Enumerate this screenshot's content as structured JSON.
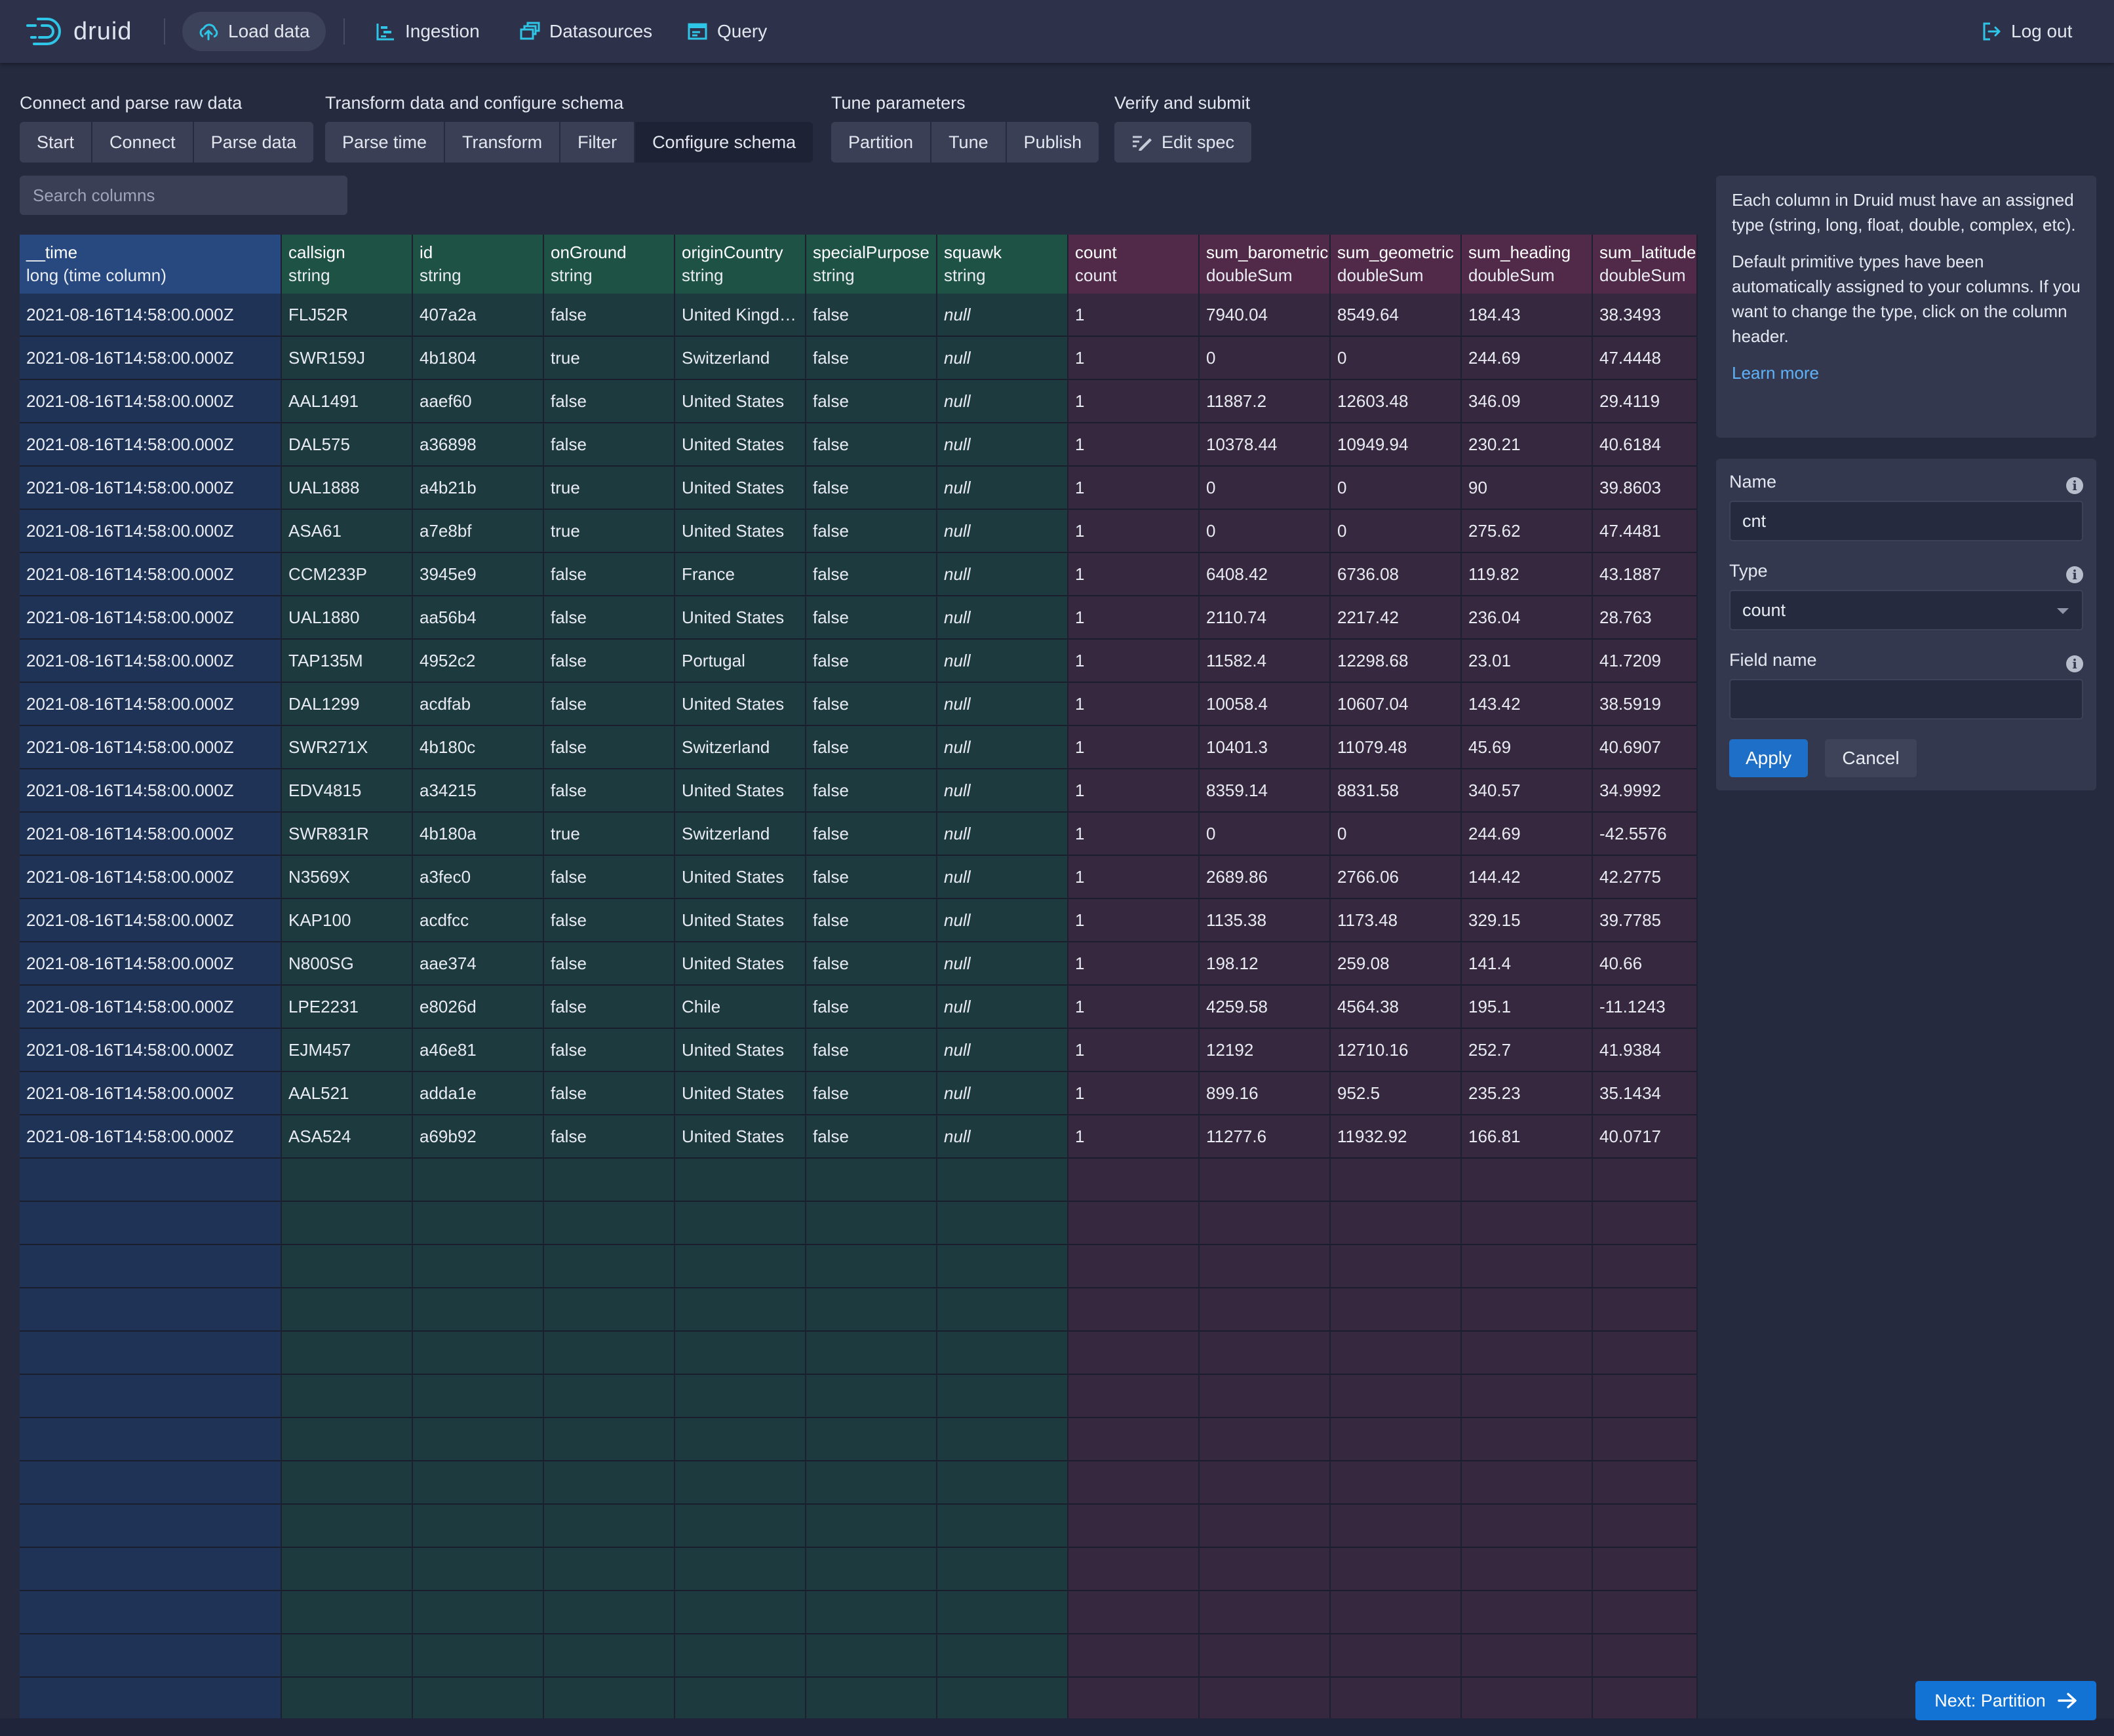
{
  "header": {
    "logo_text": "druid",
    "nav": [
      {
        "label": "Load data",
        "icon": "cloud-upload-icon",
        "active": true
      },
      {
        "label": "Ingestion",
        "icon": "gantt-chart-icon"
      },
      {
        "label": "Datasources",
        "icon": "multi-select-icon"
      },
      {
        "label": "Query",
        "icon": "application-icon"
      }
    ],
    "logout_label": "Log out"
  },
  "steps": [
    {
      "title": "Connect and parse raw data",
      "buttons": [
        "Start",
        "Connect",
        "Parse data"
      ]
    },
    {
      "title": "Transform data and configure schema",
      "buttons": [
        "Parse time",
        "Transform",
        "Filter",
        "Configure schema"
      ],
      "active": "Configure schema"
    },
    {
      "title": "Tune parameters",
      "buttons": [
        "Partition",
        "Tune",
        "Publish"
      ]
    },
    {
      "title": "Verify and submit",
      "buttons": [
        "Edit spec"
      ]
    }
  ],
  "search": {
    "placeholder": "Search columns"
  },
  "table": {
    "columns": [
      {
        "name": "__time",
        "type": "long (time column)",
        "kind": "time"
      },
      {
        "name": "callsign",
        "type": "string",
        "kind": "dim"
      },
      {
        "name": "id",
        "type": "string",
        "kind": "dim"
      },
      {
        "name": "onGround",
        "type": "string",
        "kind": "dim"
      },
      {
        "name": "originCountry",
        "type": "string",
        "kind": "dim"
      },
      {
        "name": "specialPurpose",
        "type": "string",
        "kind": "dim"
      },
      {
        "name": "squawk",
        "type": "string",
        "kind": "dim"
      },
      {
        "name": "count",
        "type": "count",
        "kind": "met"
      },
      {
        "name": "sum_barometric",
        "type": "doubleSum",
        "kind": "met"
      },
      {
        "name": "sum_geometric",
        "type": "doubleSum",
        "kind": "met"
      },
      {
        "name": "sum_heading",
        "type": "doubleSum",
        "kind": "met"
      },
      {
        "name": "sum_latitude",
        "type": "doubleSum",
        "kind": "met"
      }
    ],
    "rows": [
      [
        "2021-08-16T14:58:00.000Z",
        "FLJ52R",
        "407a2a",
        "false",
        "United Kingdom",
        "false",
        "null",
        "1",
        "7940.04",
        "8549.64",
        "184.43",
        "38.3493"
      ],
      [
        "2021-08-16T14:58:00.000Z",
        "SWR159J",
        "4b1804",
        "true",
        "Switzerland",
        "false",
        "null",
        "1",
        "0",
        "0",
        "244.69",
        "47.4448"
      ],
      [
        "2021-08-16T14:58:00.000Z",
        "AAL1491",
        "aaef60",
        "false",
        "United States",
        "false",
        "null",
        "1",
        "11887.2",
        "12603.48",
        "346.09",
        "29.4119"
      ],
      [
        "2021-08-16T14:58:00.000Z",
        "DAL575",
        "a36898",
        "false",
        "United States",
        "false",
        "null",
        "1",
        "10378.44",
        "10949.94",
        "230.21",
        "40.6184"
      ],
      [
        "2021-08-16T14:58:00.000Z",
        "UAL1888",
        "a4b21b",
        "true",
        "United States",
        "false",
        "null",
        "1",
        "0",
        "0",
        "90",
        "39.8603"
      ],
      [
        "2021-08-16T14:58:00.000Z",
        "ASA61",
        "a7e8bf",
        "true",
        "United States",
        "false",
        "null",
        "1",
        "0",
        "0",
        "275.62",
        "47.4481"
      ],
      [
        "2021-08-16T14:58:00.000Z",
        "CCM233P",
        "3945e9",
        "false",
        "France",
        "false",
        "null",
        "1",
        "6408.42",
        "6736.08",
        "119.82",
        "43.1887"
      ],
      [
        "2021-08-16T14:58:00.000Z",
        "UAL1880",
        "aa56b4",
        "false",
        "United States",
        "false",
        "null",
        "1",
        "2110.74",
        "2217.42",
        "236.04",
        "28.763"
      ],
      [
        "2021-08-16T14:58:00.000Z",
        "TAP135M",
        "4952c2",
        "false",
        "Portugal",
        "false",
        "null",
        "1",
        "11582.4",
        "12298.68",
        "23.01",
        "41.7209"
      ],
      [
        "2021-08-16T14:58:00.000Z",
        "DAL1299",
        "acdfab",
        "false",
        "United States",
        "false",
        "null",
        "1",
        "10058.4",
        "10607.04",
        "143.42",
        "38.5919"
      ],
      [
        "2021-08-16T14:58:00.000Z",
        "SWR271X",
        "4b180c",
        "false",
        "Switzerland",
        "false",
        "null",
        "1",
        "10401.3",
        "11079.48",
        "45.69",
        "40.6907"
      ],
      [
        "2021-08-16T14:58:00.000Z",
        "EDV4815",
        "a34215",
        "false",
        "United States",
        "false",
        "null",
        "1",
        "8359.14",
        "8831.58",
        "340.57",
        "34.9992"
      ],
      [
        "2021-08-16T14:58:00.000Z",
        "SWR831R",
        "4b180a",
        "true",
        "Switzerland",
        "false",
        "null",
        "1",
        "0",
        "0",
        "244.69",
        "-42.5576"
      ],
      [
        "2021-08-16T14:58:00.000Z",
        "N3569X",
        "a3fec0",
        "false",
        "United States",
        "false",
        "null",
        "1",
        "2689.86",
        "2766.06",
        "144.42",
        "42.2775"
      ],
      [
        "2021-08-16T14:58:00.000Z",
        "KAP100",
        "acdfcc",
        "false",
        "United States",
        "false",
        "null",
        "1",
        "1135.38",
        "1173.48",
        "329.15",
        "39.7785"
      ],
      [
        "2021-08-16T14:58:00.000Z",
        "N800SG",
        "aae374",
        "false",
        "United States",
        "false",
        "null",
        "1",
        "198.12",
        "259.08",
        "141.4",
        "40.66"
      ],
      [
        "2021-08-16T14:58:00.000Z",
        "LPE2231",
        "e8026d",
        "false",
        "Chile",
        "false",
        "null",
        "1",
        "4259.58",
        "4564.38",
        "195.1",
        "-11.1243"
      ],
      [
        "2021-08-16T14:58:00.000Z",
        "EJM457",
        "a46e81",
        "false",
        "United States",
        "false",
        "null",
        "1",
        "12192",
        "12710.16",
        "252.7",
        "41.9384"
      ],
      [
        "2021-08-16T14:58:00.000Z",
        "AAL521",
        "adda1e",
        "false",
        "United States",
        "false",
        "null",
        "1",
        "899.16",
        "952.5",
        "235.23",
        "35.1434"
      ],
      [
        "2021-08-16T14:58:00.000Z",
        "ASA524",
        "a69b92",
        "false",
        "United States",
        "false",
        "null",
        "1",
        "11277.6",
        "11932.92",
        "166.81",
        "40.0717"
      ]
    ]
  },
  "info_panel": {
    "text1": "Each column in Druid must have an assigned type (string, long, float, double, complex, etc).",
    "text2": "Default primitive types have been automatically assigned to your columns. If you want to change the type, click on the column header.",
    "learn_more": "Learn more"
  },
  "form": {
    "name_label": "Name",
    "name_value": "cnt",
    "type_label": "Type",
    "type_value": "count",
    "field_name_label": "Field name",
    "field_name_value": "",
    "apply_label": "Apply",
    "cancel_label": "Cancel"
  },
  "next_button": {
    "label": "Next: Partition"
  }
}
